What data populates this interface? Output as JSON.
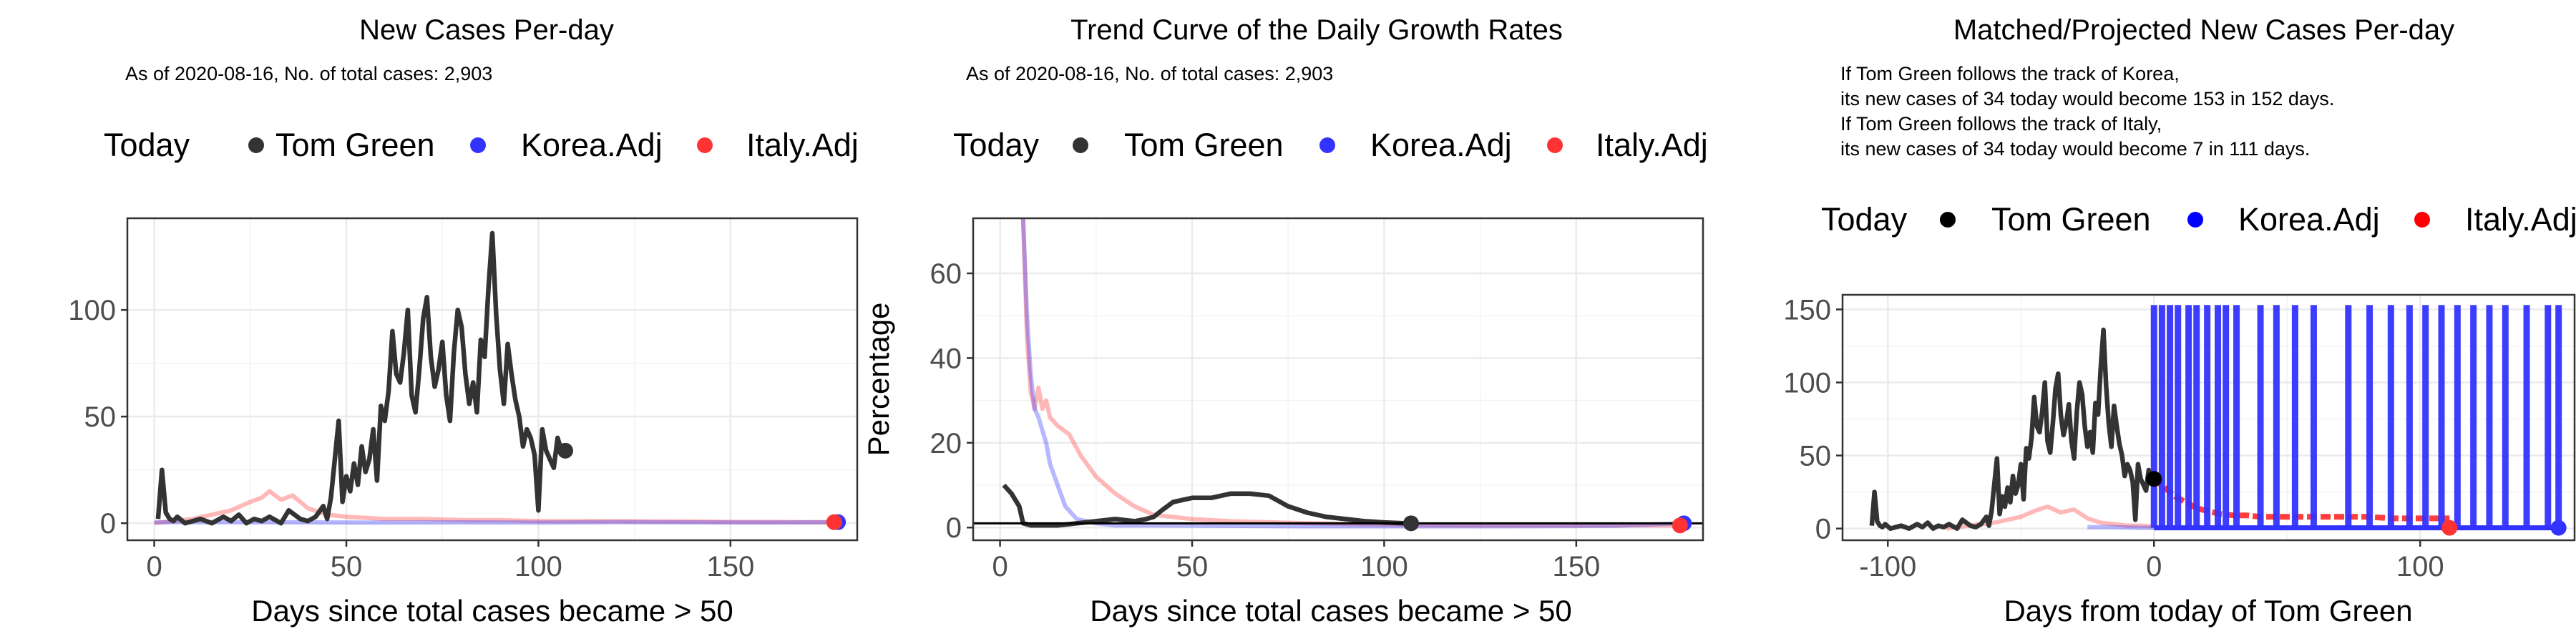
{
  "colors": {
    "tom_green": "#333333",
    "tom_green_marker": "#000000",
    "korea": "#3333ff",
    "italy": "#ff3333",
    "grid": "#ebebeb",
    "panel_border": "#333333"
  },
  "chart_data": [
    {
      "type": "line",
      "title": "New Cases Per-day",
      "subtitle": "As of 2020-08-16, No. of total cases: 2,903",
      "xlabel": "Days since total cases became > 50",
      "ylabel": "",
      "xlim": [
        -7,
        183
      ],
      "ylim": [
        -8,
        143
      ],
      "xticks": [
        0,
        50,
        100,
        150
      ],
      "yticks": [
        0,
        50,
        100
      ],
      "grid": true,
      "legend": {
        "position": "top",
        "title": "Today",
        "entries": [
          "Tom Green",
          "Korea.Adj",
          "Italy.Adj"
        ]
      },
      "series": [
        {
          "name": "Tom Green",
          "x": [
            1,
            2,
            3,
            4,
            5,
            6,
            8,
            10,
            12,
            15,
            18,
            20,
            22,
            24,
            26,
            28,
            30,
            33,
            35,
            38,
            40,
            42,
            44,
            45,
            46,
            47,
            48,
            49,
            50,
            51,
            52,
            53,
            54,
            55,
            56,
            57,
            58,
            59,
            60,
            61,
            62,
            63,
            64,
            65,
            66,
            67,
            68,
            69,
            70,
            71,
            72,
            73,
            74,
            75,
            76,
            77,
            78,
            79,
            80,
            81,
            82,
            83,
            84,
            85,
            86,
            87,
            88,
            89,
            90,
            91,
            92,
            93,
            94,
            95,
            96,
            97,
            98,
            99,
            100,
            101,
            102,
            103,
            104,
            105,
            106,
            107
          ],
          "y": [
            2,
            25,
            5,
            2,
            1,
            3,
            0,
            1,
            2,
            0,
            3,
            1,
            4,
            0,
            2,
            1,
            3,
            0,
            6,
            2,
            1,
            3,
            8,
            2,
            12,
            30,
            48,
            10,
            22,
            15,
            28,
            18,
            36,
            24,
            30,
            44,
            20,
            55,
            48,
            62,
            90,
            70,
            66,
            80,
            100,
            60,
            52,
            72,
            96,
            106,
            78,
            64,
            72,
            85,
            60,
            48,
            80,
            100,
            92,
            70,
            56,
            66,
            52,
            86,
            78,
            110,
            136,
            98,
            72,
            56,
            84,
            70,
            58,
            50,
            36,
            44,
            40,
            32,
            6,
            44,
            34,
            30,
            26,
            40,
            34,
            34
          ]
        },
        {
          "name": "Korea.Adj",
          "x": [
            0,
            20,
            40,
            60,
            80,
            100,
            120,
            140,
            160,
            178
          ],
          "y": [
            0.5,
            0.5,
            0.4,
            0.3,
            0.4,
            0.3,
            0.5,
            0.4,
            0.3,
            0.5
          ]
        },
        {
          "name": "Italy.Adj",
          "x": [
            0,
            10,
            20,
            25,
            28,
            30,
            33,
            36,
            40,
            45,
            50,
            60,
            70,
            80,
            90,
            100,
            110,
            120,
            130,
            140,
            150,
            160,
            170,
            177
          ],
          "y": [
            0,
            2,
            6,
            10,
            12,
            15,
            11,
            13,
            7,
            4,
            3,
            2,
            2,
            1.5,
            1.5,
            1,
            1,
            1,
            0.8,
            0.8,
            0.6,
            0.6,
            0.5,
            0.5
          ]
        }
      ]
    },
    {
      "type": "line",
      "title": "Trend Curve of the Daily Growth Rates",
      "subtitle": "As of 2020-08-16, No. of total cases: 2,903",
      "xlabel": "Days since total cases became > 50",
      "ylabel": "Percentage",
      "xlim": [
        -7,
        183
      ],
      "ylim": [
        -3,
        73
      ],
      "xticks": [
        0,
        50,
        100,
        150
      ],
      "yticks": [
        0,
        20,
        40,
        60
      ],
      "grid": true,
      "reference_line_y": 1,
      "legend": {
        "position": "top",
        "title": "Today",
        "entries": [
          "Tom Green",
          "Korea.Adj",
          "Italy.Adj"
        ]
      },
      "series": [
        {
          "name": "Tom Green",
          "x": [
            1,
            3,
            5,
            6,
            8,
            10,
            15,
            20,
            25,
            30,
            35,
            38,
            40,
            42,
            45,
            50,
            55,
            60,
            65,
            70,
            75,
            80,
            85,
            90,
            95,
            100,
            105,
            107
          ],
          "y": [
            10,
            8,
            5,
            1,
            0.5,
            0.5,
            0.5,
            1,
            1.5,
            2,
            1.5,
            2,
            2.5,
            4,
            6,
            7,
            7,
            8,
            8,
            7.5,
            5,
            3.5,
            2.5,
            2,
            1.5,
            1.2,
            1,
            1
          ]
        },
        {
          "name": "Korea.Adj",
          "x": [
            6,
            7,
            8,
            9,
            10,
            11,
            12,
            13,
            15,
            17,
            20,
            25,
            30,
            40,
            60,
            80,
            100,
            130,
            160,
            178
          ],
          "y": [
            73,
            50,
            36,
            28,
            26,
            23,
            20,
            15,
            10,
            5,
            2,
            1,
            0.5,
            0.5,
            0.4,
            0.3,
            0.3,
            0.3,
            0.4,
            1
          ]
        },
        {
          "name": "Italy.Adj",
          "x": [
            6,
            7,
            8,
            9,
            10,
            11,
            12,
            13,
            15,
            18,
            21,
            25,
            30,
            35,
            40,
            50,
            60,
            80,
            100,
            120,
            150,
            177
          ],
          "y": [
            73,
            45,
            32,
            28,
            33,
            28,
            30,
            26,
            24,
            22,
            17,
            12,
            8,
            5,
            3,
            2,
            1.5,
            1,
            0.7,
            0.5,
            0.5,
            0.5
          ]
        }
      ]
    },
    {
      "type": "line",
      "title": "Matched/Projected New Cases Per-day",
      "subtitle_lines": [
        "If Tom Green follows the track of Korea,",
        "its new cases of 34 today would become 153 in 152 days.",
        "If Tom Green follows the track of Italy,",
        "its new cases of 34 today would become 7 in 111 days."
      ],
      "xlabel": "Days from today of Tom Green",
      "ylabel": "",
      "xlim": [
        -117,
        158
      ],
      "ylim": [
        -8,
        160
      ],
      "xticks": [
        -100,
        0,
        100
      ],
      "yticks": [
        0,
        50,
        100,
        150
      ],
      "grid": true,
      "legend": {
        "position": "top",
        "title": "Today",
        "entries": [
          "Tom Green",
          "Korea.Adj",
          "Italy.Adj"
        ]
      },
      "series": [
        {
          "name": "Tom Green",
          "x": [
            -106,
            -105,
            -104,
            -103,
            -102,
            -101,
            -99,
            -97,
            -95,
            -92,
            -89,
            -87,
            -85,
            -83,
            -81,
            -79,
            -77,
            -74,
            -72,
            -69,
            -67,
            -65,
            -63,
            -62,
            -61,
            -60,
            -59,
            -58,
            -57,
            -56,
            -55,
            -54,
            -53,
            -52,
            -51,
            -50,
            -49,
            -48,
            -47,
            -46,
            -45,
            -44,
            -43,
            -42,
            -41,
            -40,
            -39,
            -38,
            -37,
            -36,
            -35,
            -34,
            -33,
            -32,
            -31,
            -30,
            -29,
            -28,
            -27,
            -26,
            -25,
            -24,
            -23,
            -22,
            -21,
            -20,
            -19,
            -18,
            -17,
            -16,
            -15,
            -14,
            -13,
            -12,
            -11,
            -10,
            -9,
            -8,
            -7,
            -6,
            -5,
            -4,
            -3,
            -2,
            -1,
            0
          ],
          "y": [
            2,
            25,
            5,
            2,
            1,
            3,
            0,
            1,
            2,
            0,
            3,
            1,
            4,
            0,
            2,
            1,
            3,
            0,
            6,
            2,
            1,
            3,
            8,
            2,
            12,
            30,
            48,
            10,
            22,
            15,
            28,
            18,
            36,
            24,
            30,
            44,
            20,
            55,
            48,
            62,
            90,
            70,
            66,
            80,
            100,
            60,
            52,
            72,
            96,
            106,
            78,
            64,
            72,
            85,
            60,
            48,
            80,
            100,
            92,
            70,
            56,
            66,
            52,
            86,
            78,
            110,
            136,
            98,
            72,
            56,
            84,
            70,
            58,
            50,
            36,
            44,
            40,
            32,
            6,
            44,
            34,
            30,
            26,
            40,
            34,
            34
          ]
        },
        {
          "name": "Korea.Adj",
          "x": [
            -25,
            -15,
            -5,
            0,
            152
          ],
          "y": [
            1,
            1,
            0.5,
            0.5,
            0.5
          ]
        },
        {
          "name": "Korea.Adj",
          "projection": true,
          "spike_x": [
            0,
            3,
            6,
            9,
            13,
            16,
            20,
            24,
            27,
            31,
            40,
            46,
            53,
            60,
            73,
            81,
            89,
            96,
            102,
            108,
            114,
            120,
            126,
            132,
            140,
            148,
            152
          ],
          "baseline": 0.5,
          "peak": 153
        },
        {
          "name": "Italy.Adj",
          "x": [
            -78,
            -70,
            -60,
            -50,
            -45,
            -40,
            -35,
            -30,
            -25,
            -20,
            -15,
            -10,
            -5,
            0
          ],
          "y": [
            0,
            2,
            4,
            8,
            12,
            15,
            11,
            13,
            7,
            4,
            3,
            2,
            2,
            1.5
          ]
        },
        {
          "name": "Italy.Adj",
          "projection": true,
          "x": [
            0,
            4,
            8,
            12,
            16,
            20,
            25,
            30,
            35,
            40,
            50,
            60,
            70,
            80,
            90,
            100,
            111
          ],
          "y": [
            34,
            28,
            22,
            18,
            14,
            12,
            10,
            9,
            9,
            8,
            8,
            8,
            8,
            8,
            7,
            7,
            7
          ]
        }
      ],
      "today_points": {
        "Tom Green": [
          0,
          34
        ],
        "Korea.Adj": [
          152,
          0.5
        ],
        "Italy.Adj": [
          111,
          0.5
        ]
      }
    }
  ]
}
